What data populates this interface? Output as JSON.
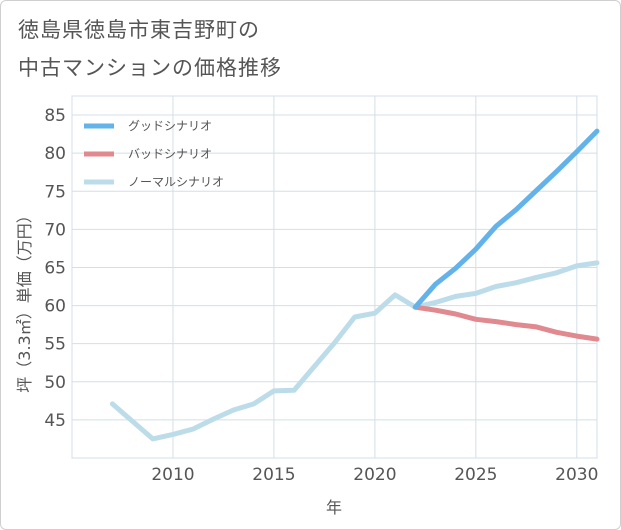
{
  "title_line1": "徳島県徳島市東吉野町の",
  "title_line2": "中古マンションの価格推移",
  "chart_data": {
    "type": "line",
    "xlabel": "年",
    "ylabel": "坪（3.3㎡）単価（万円）",
    "xlim": [
      2005,
      2031
    ],
    "ylim": [
      40,
      87.5
    ],
    "x_ticks": [
      2010,
      2015,
      2020,
      2025,
      2030
    ],
    "y_ticks": [
      45,
      50,
      55,
      60,
      65,
      70,
      75,
      80,
      85
    ],
    "grid": true,
    "legend_position": "top-left",
    "series": [
      {
        "name": "グッドシナリオ",
        "color": "#63b3ea",
        "x": [
          2022,
          2023,
          2024,
          2025,
          2026,
          2027,
          2028,
          2029,
          2030,
          2031
        ],
        "y": [
          59.8,
          62.8,
          64.9,
          67.4,
          70.4,
          72.6,
          75.1,
          77.6,
          80.2,
          82.9
        ]
      },
      {
        "name": "バッドシナリオ",
        "color": "#e08a8f",
        "x": [
          2022,
          2023,
          2024,
          2025,
          2026,
          2027,
          2028,
          2029,
          2030,
          2031
        ],
        "y": [
          59.8,
          59.4,
          58.9,
          58.2,
          57.9,
          57.5,
          57.2,
          56.5,
          56.0,
          55.6
        ]
      },
      {
        "name": "ノーマルシナリオ",
        "color": "#bcdcea",
        "x": [
          2007,
          2008,
          2009,
          2010,
          2011,
          2012,
          2013,
          2014,
          2015,
          2016,
          2017,
          2018,
          2019,
          2020,
          2021,
          2022,
          2023,
          2024,
          2025,
          2026,
          2027,
          2028,
          2029,
          2030,
          2031
        ],
        "y": [
          47.1,
          44.8,
          42.5,
          43.1,
          43.8,
          45.1,
          46.3,
          47.1,
          48.8,
          48.9,
          52.0,
          55.1,
          58.5,
          59.0,
          61.4,
          59.8,
          60.4,
          61.2,
          61.6,
          62.5,
          63.0,
          63.7,
          64.3,
          65.2,
          65.6
        ]
      }
    ]
  }
}
